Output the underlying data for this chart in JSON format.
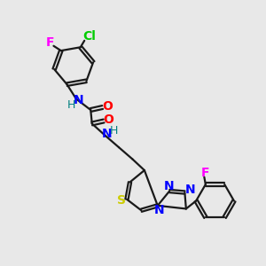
{
  "background_color": "#e8e8e8",
  "bond_color": "#1a1a1a",
  "atom_colors": {
    "N": "#0000ff",
    "O": "#ff0000",
    "S": "#cccc00",
    "Cl": "#00cc00",
    "F_pink": "#ff00ff",
    "H": "#008080",
    "C": "#1a1a1a"
  },
  "figsize": [
    3.0,
    3.0
  ],
  "dpi": 100
}
